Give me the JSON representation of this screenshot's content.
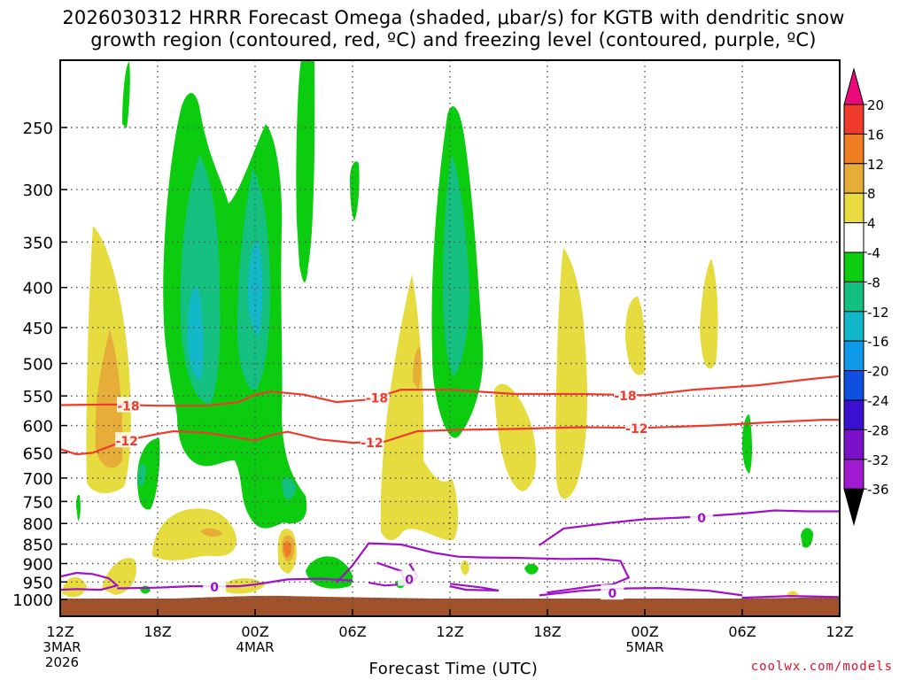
{
  "chart_data": {
    "type": "heatmap",
    "title_lines": [
      "2026030312 HRRR Forecast Omega (shaded, μbar/s) for KGTB with dendritic snow",
      "growth region (contoured, red, ºC) and freezing level (contoured, purple, ºC)"
    ],
    "xlabel": "Forecast Time (UTC)",
    "ylabel": "",
    "x_ticks": [
      {
        "hour": 0,
        "label": "12Z",
        "date_label": "3MAR",
        "year_label": "2026"
      },
      {
        "hour": 6,
        "label": "18Z"
      },
      {
        "hour": 12,
        "label": "00Z",
        "date_label": "4MAR"
      },
      {
        "hour": 18,
        "label": "06Z"
      },
      {
        "hour": 24,
        "label": "12Z"
      },
      {
        "hour": 30,
        "label": "18Z"
      },
      {
        "hour": 36,
        "label": "00Z",
        "date_label": "5MAR"
      },
      {
        "hour": 42,
        "label": "06Z"
      },
      {
        "hour": 48,
        "label": "12Z"
      }
    ],
    "x_range_hours": [
      0,
      48
    ],
    "y_ticks_hpa": [
      250,
      300,
      350,
      400,
      450,
      500,
      550,
      600,
      650,
      700,
      750,
      800,
      850,
      900,
      950,
      1000
    ],
    "y_range_hpa": [
      200,
      1030
    ],
    "colorbar": {
      "units": "μbar/s",
      "levels": [
        20,
        16,
        12,
        8,
        4,
        -4,
        -8,
        -12,
        -16,
        -20,
        -24,
        -28,
        -32,
        -36
      ],
      "colors": [
        "#ea0a7a",
        "#f03a2c",
        "#ef7f22",
        "#e6ae38",
        "#e8dc40",
        "#ffffff",
        "#0ccc10",
        "#14c080",
        "#12b8c8",
        "#1098e8",
        "#1050e0",
        "#3c10d0",
        "#7a10c8",
        "#a01ad0",
        "#a8a8a8",
        "#000000"
      ]
    },
    "contours": [
      {
        "name": "dendritic top",
        "color": "#f03a2c",
        "label": "-18",
        "points": [
          [
            0,
            565
          ],
          [
            3,
            564
          ],
          [
            6,
            566
          ],
          [
            9,
            566
          ],
          [
            11,
            560
          ],
          [
            12,
            548
          ],
          [
            13,
            543
          ],
          [
            15,
            548
          ],
          [
            17,
            560
          ],
          [
            19,
            556
          ],
          [
            21,
            540
          ],
          [
            24,
            540
          ],
          [
            28,
            547
          ],
          [
            32,
            547
          ],
          [
            36,
            549
          ],
          [
            39,
            540
          ],
          [
            43,
            533
          ],
          [
            46,
            524
          ],
          [
            48,
            519
          ]
        ],
        "label_hours": [
          4.2,
          19.5,
          34.8
        ]
      },
      {
        "name": "dendritic bottom",
        "color": "#f03a2c",
        "label": "-12",
        "points": [
          [
            0,
            643
          ],
          [
            1,
            653
          ],
          [
            2,
            650
          ],
          [
            4,
            627
          ],
          [
            6,
            615
          ],
          [
            7,
            610
          ],
          [
            9,
            613
          ],
          [
            11,
            622
          ],
          [
            12,
            627
          ],
          [
            13,
            617
          ],
          [
            14,
            611
          ],
          [
            16,
            625
          ],
          [
            18,
            631
          ],
          [
            20,
            629
          ],
          [
            22,
            610
          ],
          [
            24,
            608
          ],
          [
            28,
            606
          ],
          [
            32,
            603
          ],
          [
            36,
            604
          ],
          [
            40,
            600
          ],
          [
            44,
            594
          ],
          [
            47,
            590
          ],
          [
            48,
            590
          ]
        ],
        "label_hours": [
          4.1,
          19.2,
          35.5
        ]
      },
      {
        "name": "freezing level",
        "color": "#a010c8",
        "label": "0",
        "segments": [
          [
            [
              0,
              935
            ],
            [
              1,
              925
            ],
            [
              2,
              928
            ],
            [
              3,
              940
            ],
            [
              3.5,
              960
            ],
            [
              2.5,
              972
            ],
            [
              1,
              970
            ],
            [
              0,
              972
            ]
          ],
          [
            [
              3.5,
              968
            ],
            [
              6,
              966
            ],
            [
              8,
              962
            ],
            [
              10,
              962
            ],
            [
              11,
              962
            ],
            [
              12,
              957
            ],
            [
              14,
              943
            ],
            [
              16,
              941
            ],
            [
              18,
              946
            ]
          ],
          [
            [
              17,
              952
            ],
            [
              18,
              905
            ],
            [
              19,
              848
            ],
            [
              21,
              851
            ],
            [
              23,
              872
            ],
            [
              24.5,
              882
            ],
            [
              26,
              884
            ],
            [
              28,
              885
            ],
            [
              31,
              888
            ],
            [
              33,
              887
            ],
            [
              34.5,
              893
            ],
            [
              35,
              938
            ],
            [
              34,
              957
            ],
            [
              33,
              960
            ],
            [
              32,
              967
            ],
            [
              30,
              980
            ]
          ],
          [
            [
              21.5,
              900
            ],
            [
              22,
              935
            ],
            [
              21.5,
              955
            ],
            [
              20,
              960
            ],
            [
              19,
              952
            ]
          ],
          [
            [
              19.5,
              898
            ],
            [
              21,
              920
            ],
            [
              21.2,
              948
            ]
          ],
          [
            [
              24,
              955
            ],
            [
              26,
              966
            ],
            [
              27,
              974
            ],
            [
              25,
              972
            ],
            [
              24,
              962
            ]
          ],
          [
            [
              29.5,
              853
            ],
            [
              31,
              812
            ],
            [
              34,
              798
            ],
            [
              36,
              790
            ],
            [
              39,
              785
            ],
            [
              42,
              777
            ],
            [
              44,
              770
            ],
            [
              46,
              772
            ],
            [
              48,
              772
            ]
          ],
          [
            [
              29.5,
              988
            ],
            [
              32,
              975
            ],
            [
              35,
              968
            ],
            [
              37,
              967
            ],
            [
              40,
              975
            ],
            [
              42,
              988
            ]
          ],
          [
            [
              42,
              995
            ],
            [
              45,
              990
            ],
            [
              48,
              993
            ]
          ]
        ],
        "label_points": [
          [
            9.5,
            962
          ],
          [
            21.5,
            941
          ],
          [
            39.5,
            785
          ],
          [
            34,
            980
          ]
        ]
      }
    ],
    "annotations": [
      "-18",
      "-12",
      "0"
    ]
  },
  "credit": "coolwx.com/models"
}
